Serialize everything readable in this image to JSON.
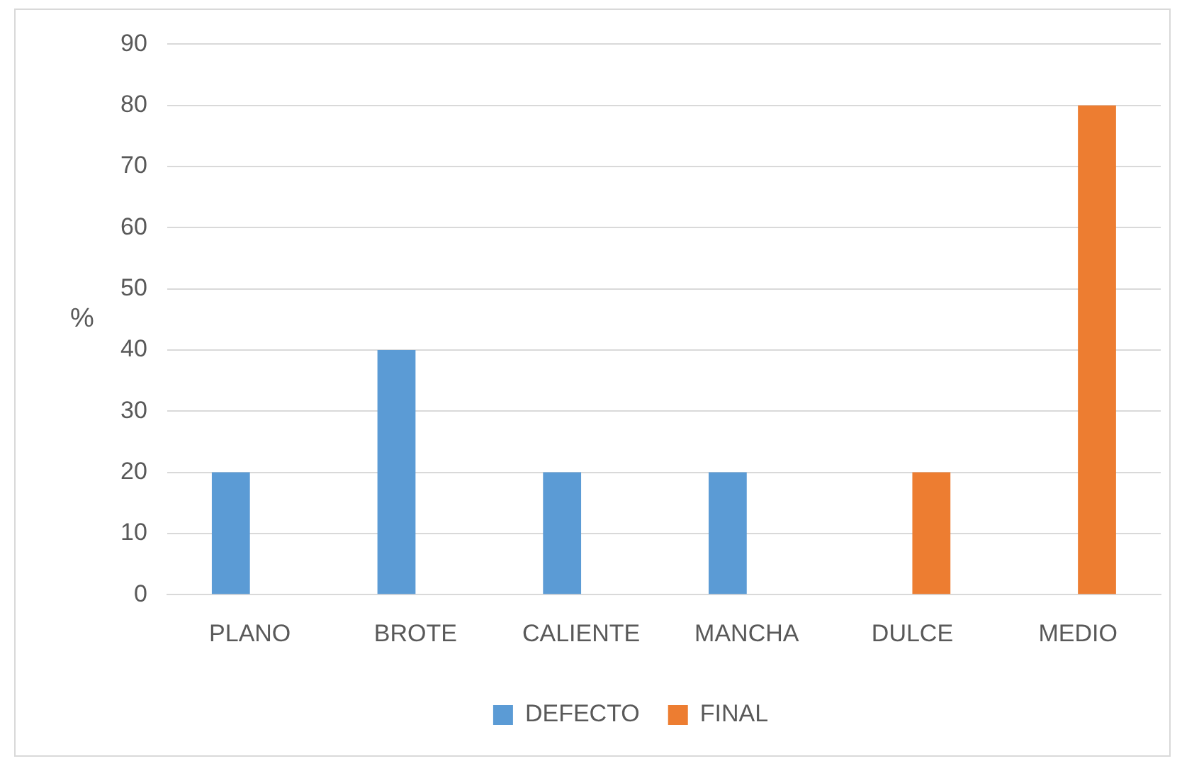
{
  "chart_data": {
    "type": "bar",
    "ylabel": "%",
    "categories": [
      "PLANO",
      "BROTE",
      "CALIENTE",
      "MANCHA",
      "DULCE",
      "MEDIO"
    ],
    "series": [
      {
        "name": "DEFECTO",
        "color": "#5b9bd5",
        "values": [
          20,
          40,
          20,
          20,
          null,
          null
        ]
      },
      {
        "name": "FINAL",
        "color": "#ed7d31",
        "values": [
          null,
          null,
          null,
          null,
          20,
          80
        ]
      }
    ],
    "ylim": [
      0,
      90
    ],
    "yticks": [
      0,
      10,
      20,
      30,
      40,
      50,
      60,
      70,
      80,
      90
    ],
    "grid": "y",
    "legend": "bottom"
  }
}
